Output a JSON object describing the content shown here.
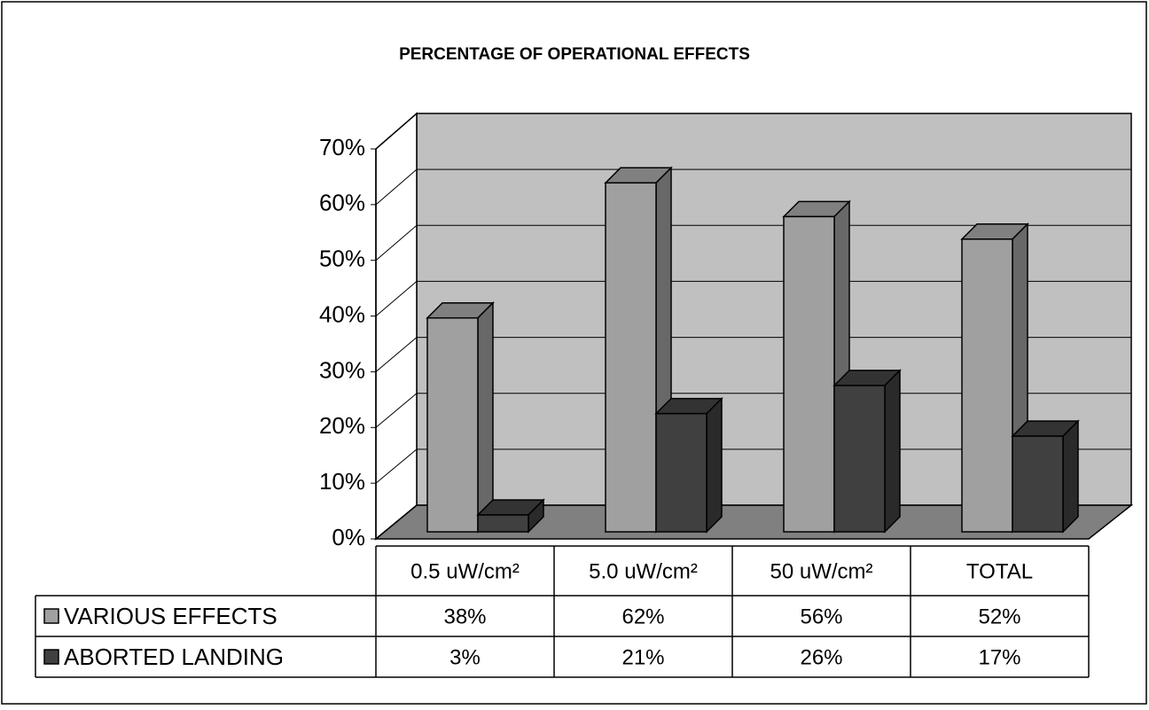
{
  "chart_data": {
    "type": "bar3d",
    "title": "PERCENTAGE OF OPERATIONAL EFFECTS",
    "categories": [
      "0.5 uW/cm²",
      "5.0 uW/cm²",
      "50 uW/cm²",
      "TOTAL"
    ],
    "series": [
      {
        "name": "VARIOUS EFFECTS",
        "color": "#a0a0a0",
        "values": [
          38,
          62,
          56,
          52
        ],
        "value_labels": [
          "38%",
          "62%",
          "56%",
          "52%"
        ]
      },
      {
        "name": "ABORTED LANDING",
        "color": "#404040",
        "values": [
          3,
          21,
          26,
          17
        ],
        "value_labels": [
          "3%",
          "21%",
          "26%",
          "17%"
        ]
      }
    ],
    "ylim": [
      0,
      70
    ],
    "yticks": [
      {
        "value": 0,
        "label": "0%"
      },
      {
        "value": 10,
        "label": "10%"
      },
      {
        "value": 20,
        "label": "20%"
      },
      {
        "value": 30,
        "label": "30%"
      },
      {
        "value": 40,
        "label": "40%"
      },
      {
        "value": 50,
        "label": "50%"
      },
      {
        "value": 60,
        "label": "60%"
      },
      {
        "value": 70,
        "label": "70%"
      }
    ],
    "grid": true
  }
}
